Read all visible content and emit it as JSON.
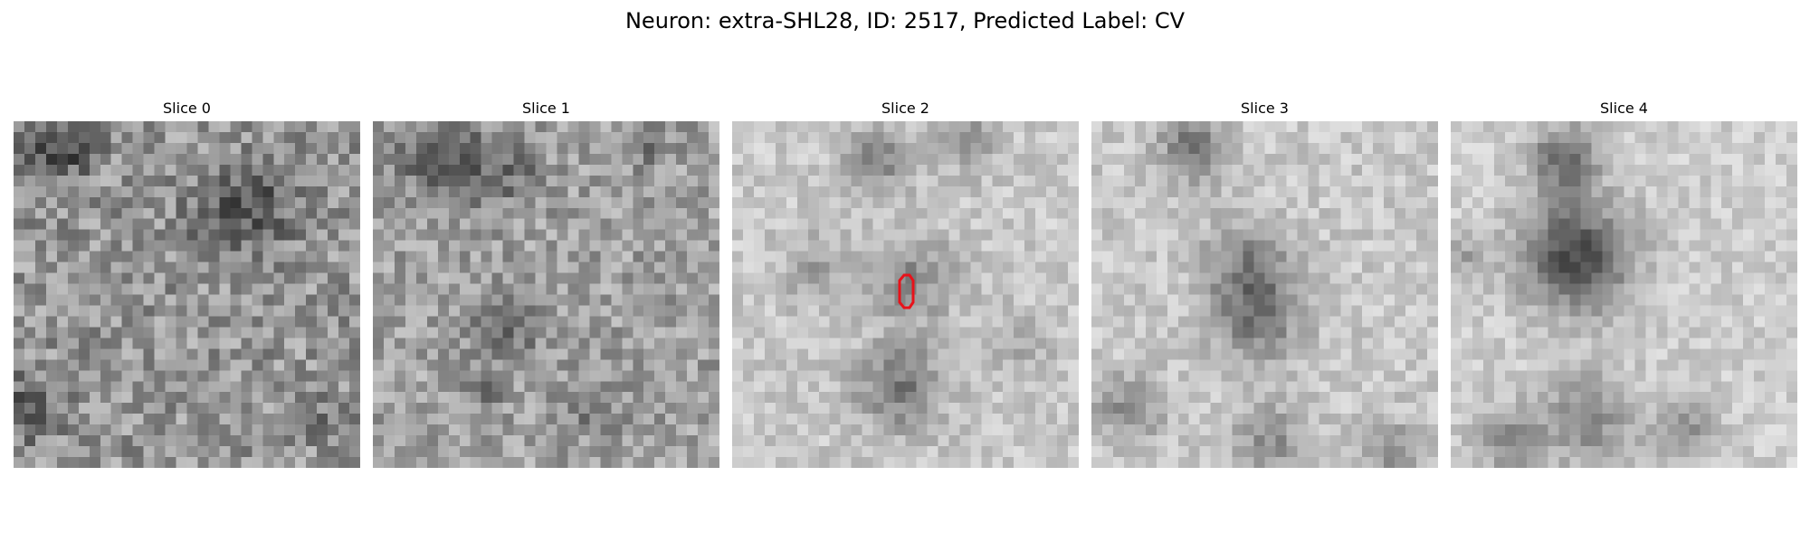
{
  "figure": {
    "title": "Neuron: extra-SHL28, ID: 2517, Predicted Label: CV",
    "colormap": "gray",
    "roi_color": "#e8121a"
  },
  "slices": [
    {
      "title": "Slice 0"
    },
    {
      "title": "Slice 1"
    },
    {
      "title": "Slice 2"
    },
    {
      "title": "Slice 3"
    },
    {
      "title": "Slice 4"
    }
  ]
}
